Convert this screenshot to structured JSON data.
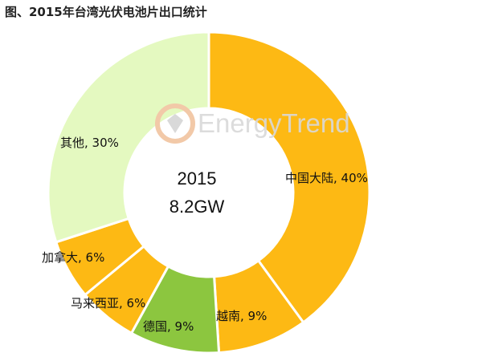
{
  "colors": {
    "background": "#ffffff",
    "border": "#ffffff",
    "label_text": "#111111",
    "watermark": "#d9d9d9",
    "watermark_accent": "#f2c9a8"
  },
  "watermark": {
    "text": "EnergyTrend"
  },
  "chart_data": {
    "type": "pie",
    "title": "图、2015年台湾光伏电池片出口统计",
    "center_text": {
      "line1": "2015",
      "line2": "8.2GW"
    },
    "unit": "%",
    "slices": [
      {
        "label": "中国大陆",
        "value": 40,
        "display": "中国大陆, 40%",
        "color": "#FDB914"
      },
      {
        "label": "越南",
        "value": 9,
        "display": "越南, 9%",
        "color": "#FDB914"
      },
      {
        "label": "德国",
        "value": 9,
        "display": "德国, 9%",
        "color": "#8CC63F"
      },
      {
        "label": "马来西亚",
        "value": 6,
        "display": "马来西亚, 6%",
        "color": "#FDB914"
      },
      {
        "label": "加拿大",
        "value": 6,
        "display": "加拿大, 6%",
        "color": "#FDB914"
      },
      {
        "label": "其他",
        "value": 30,
        "display": "其他, 30%",
        "color": "#E4F9C0"
      }
    ],
    "legend": "none"
  }
}
